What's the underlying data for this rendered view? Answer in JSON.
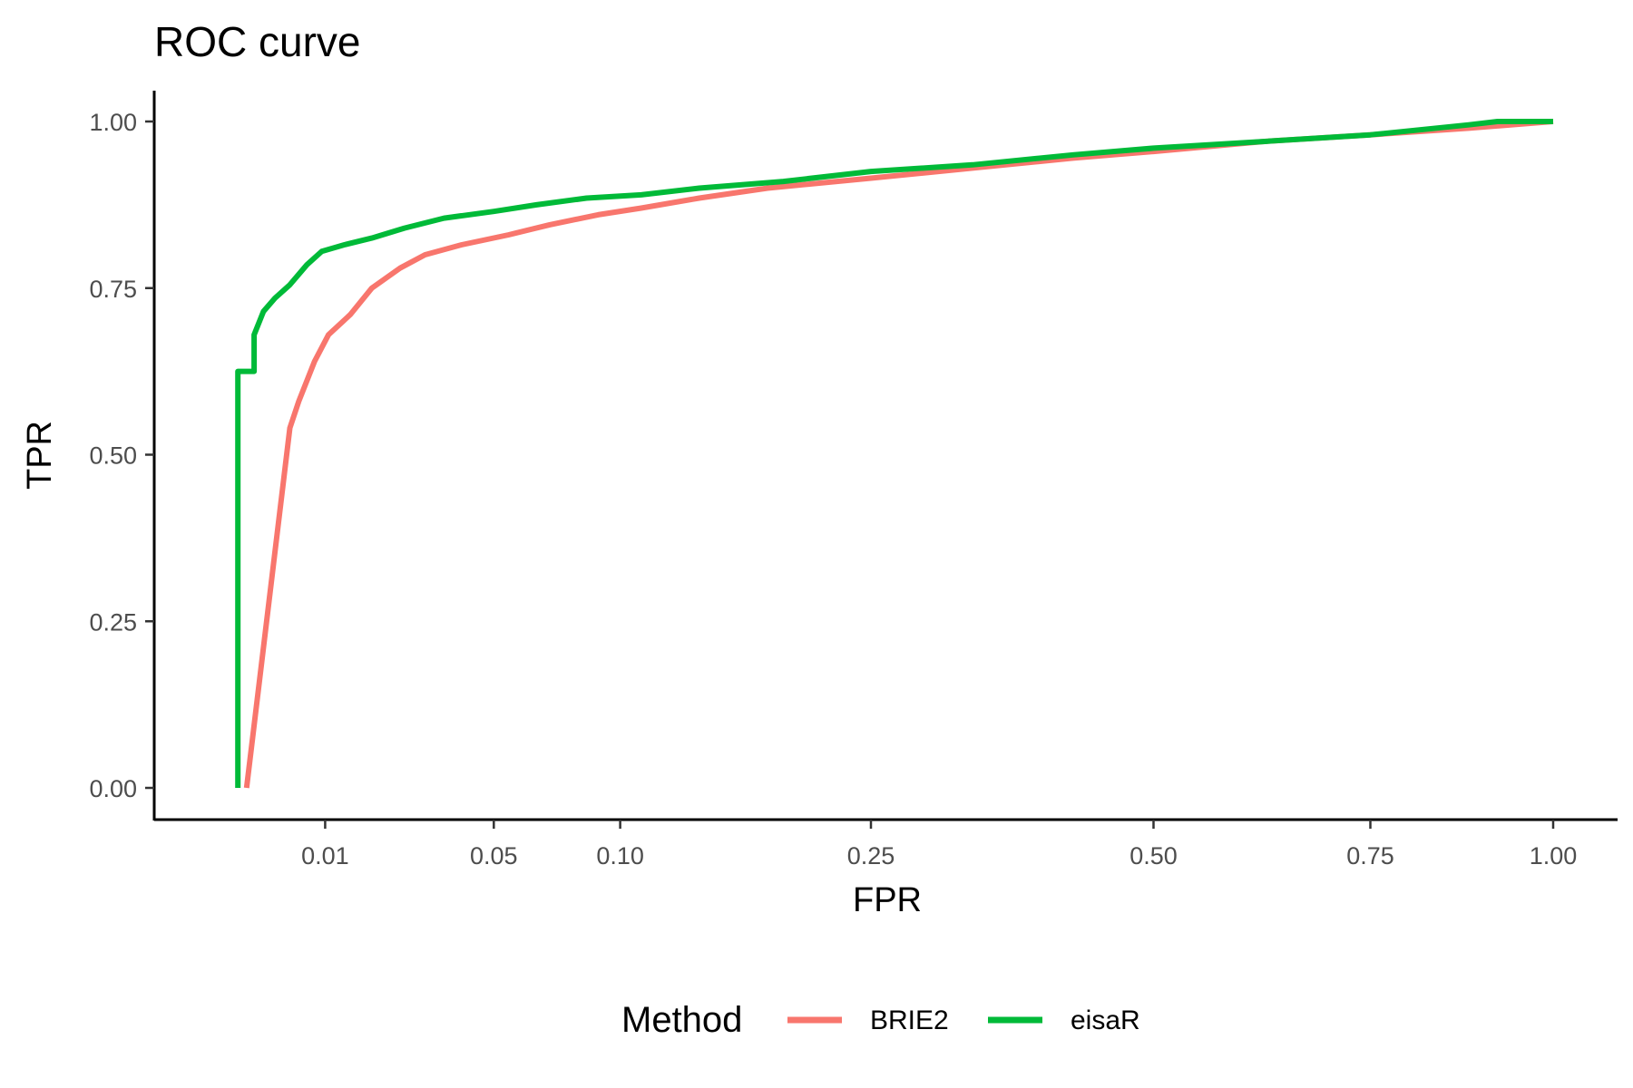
{
  "chart_data": {
    "type": "line",
    "title": "ROC curve",
    "xlabel": "FPR",
    "ylabel": "TPR",
    "x_scale": "sqrt",
    "xlim": [
      0,
      1
    ],
    "ylim": [
      0,
      1
    ],
    "x_ticks": [
      {
        "value": 0.01,
        "label": "0.01"
      },
      {
        "value": 0.05,
        "label": "0.05"
      },
      {
        "value": 0.1,
        "label": "0.10"
      },
      {
        "value": 0.25,
        "label": "0.25"
      },
      {
        "value": 0.5,
        "label": "0.50"
      },
      {
        "value": 0.75,
        "label": "0.75"
      },
      {
        "value": 1.0,
        "label": "1.00"
      }
    ],
    "y_ticks": [
      {
        "value": 0.0,
        "label": "0.00"
      },
      {
        "value": 0.25,
        "label": "0.25"
      },
      {
        "value": 0.5,
        "label": "0.50"
      },
      {
        "value": 0.75,
        "label": "0.75"
      },
      {
        "value": 1.0,
        "label": "1.00"
      }
    ],
    "grid": false,
    "legend": {
      "title": "Method",
      "position": "bottom"
    },
    "series": [
      {
        "name": "BRIE2",
        "color": "#F8766D",
        "points": [
          [
            0.0018,
            0.0
          ],
          [
            0.0055,
            0.54
          ],
          [
            0.0065,
            0.58
          ],
          [
            0.0085,
            0.64
          ],
          [
            0.0105,
            0.68
          ],
          [
            0.014,
            0.71
          ],
          [
            0.018,
            0.75
          ],
          [
            0.024,
            0.78
          ],
          [
            0.03,
            0.8
          ],
          [
            0.04,
            0.815
          ],
          [
            0.055,
            0.83
          ],
          [
            0.07,
            0.845
          ],
          [
            0.09,
            0.86
          ],
          [
            0.11,
            0.87
          ],
          [
            0.14,
            0.885
          ],
          [
            0.18,
            0.9
          ],
          [
            0.25,
            0.915
          ],
          [
            0.33,
            0.93
          ],
          [
            0.42,
            0.945
          ],
          [
            0.5,
            0.955
          ],
          [
            0.62,
            0.97
          ],
          [
            0.75,
            0.98
          ],
          [
            0.88,
            0.99
          ],
          [
            1.0,
            1.0
          ]
        ]
      },
      {
        "name": "eisaR",
        "color": "#00BA38",
        "points": [
          [
            0.0013,
            0.0
          ],
          [
            0.0013,
            0.625
          ],
          [
            0.0023,
            0.625
          ],
          [
            0.0023,
            0.68
          ],
          [
            0.003,
            0.715
          ],
          [
            0.004,
            0.735
          ],
          [
            0.0055,
            0.755
          ],
          [
            0.0075,
            0.785
          ],
          [
            0.0095,
            0.805
          ],
          [
            0.013,
            0.815
          ],
          [
            0.018,
            0.825
          ],
          [
            0.025,
            0.84
          ],
          [
            0.035,
            0.855
          ],
          [
            0.05,
            0.865
          ],
          [
            0.065,
            0.875
          ],
          [
            0.085,
            0.885
          ],
          [
            0.11,
            0.89
          ],
          [
            0.14,
            0.9
          ],
          [
            0.19,
            0.91
          ],
          [
            0.25,
            0.925
          ],
          [
            0.33,
            0.935
          ],
          [
            0.42,
            0.95
          ],
          [
            0.5,
            0.96
          ],
          [
            0.62,
            0.97
          ],
          [
            0.75,
            0.98
          ],
          [
            0.88,
            0.995
          ],
          [
            0.92,
            1.0
          ],
          [
            1.0,
            1.0
          ]
        ]
      }
    ]
  }
}
